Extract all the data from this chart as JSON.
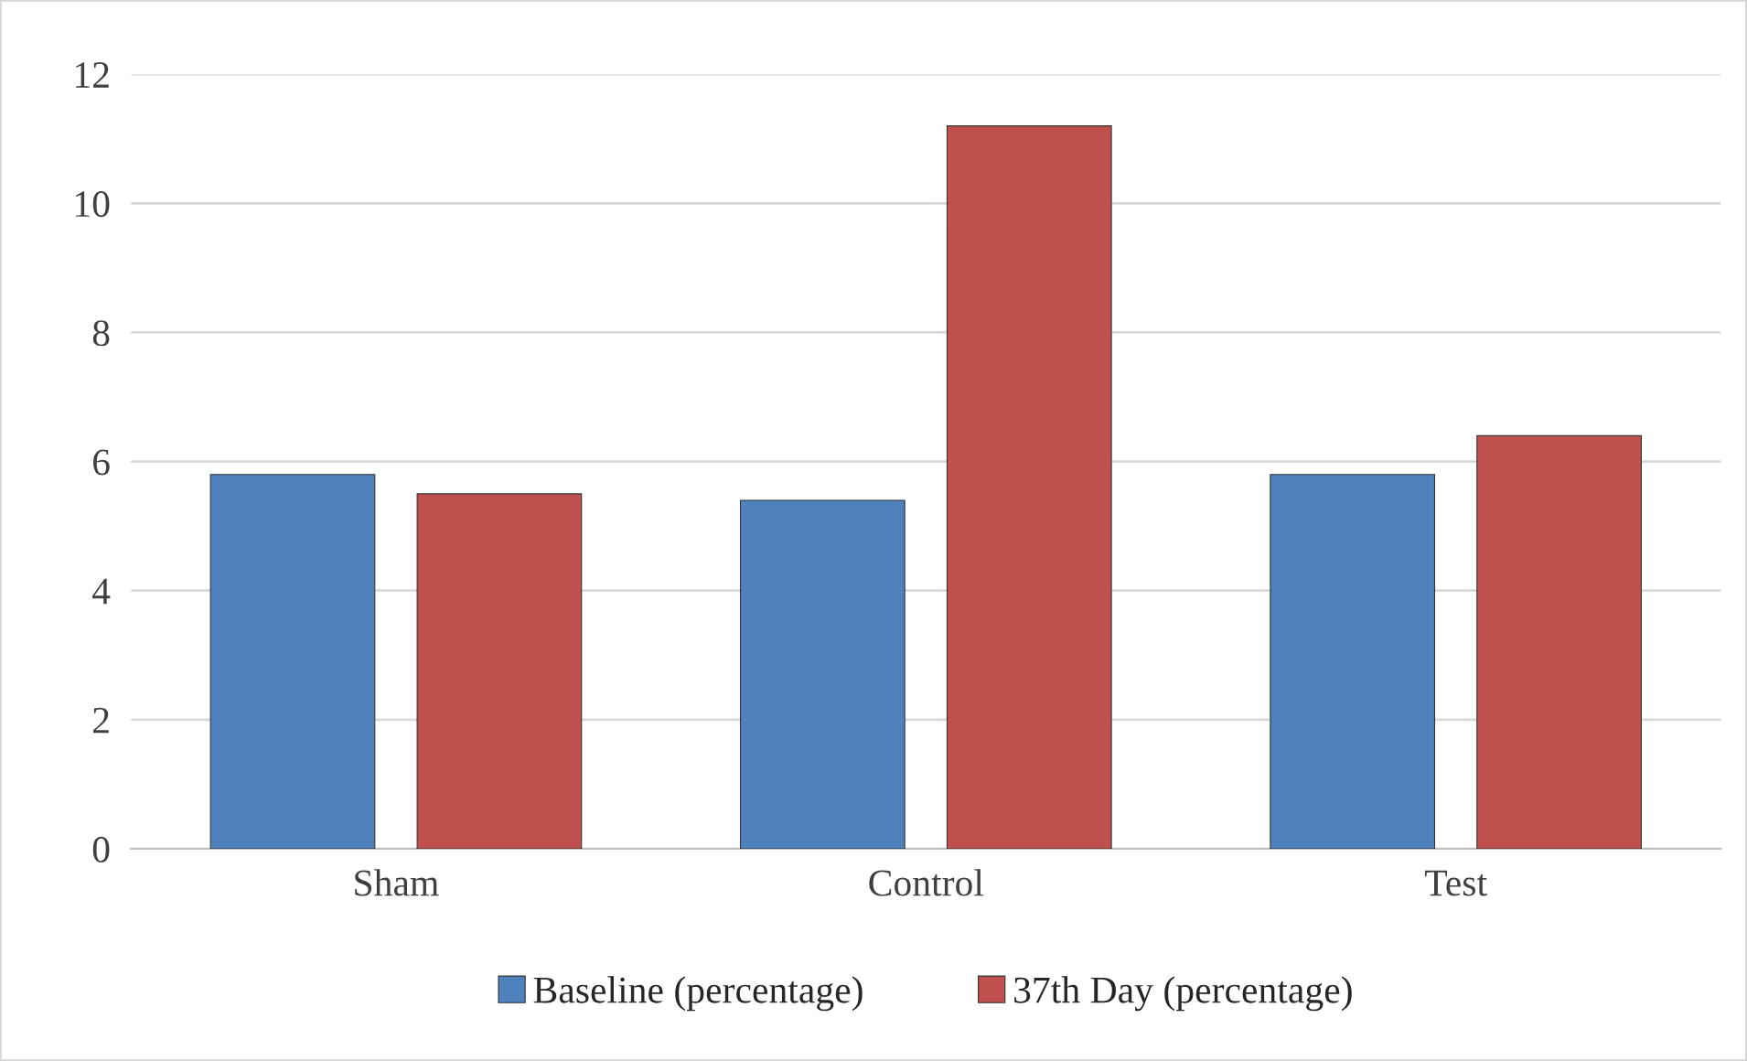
{
  "chart_data": {
    "type": "bar",
    "categories": [
      "Sham",
      "Control",
      "Test"
    ],
    "series": [
      {
        "name": "Baseline (percentage)",
        "color": "#4f81bd",
        "values": [
          5.8,
          5.4,
          5.8
        ]
      },
      {
        "name": "37th Day (percentage)",
        "color": "#c0504d",
        "values": [
          5.5,
          11.2,
          6.4
        ]
      }
    ],
    "ylim": [
      0,
      12
    ],
    "yticks": [
      0,
      2,
      4,
      6,
      8,
      10,
      12
    ],
    "grid": "y",
    "legend": "bottom"
  }
}
